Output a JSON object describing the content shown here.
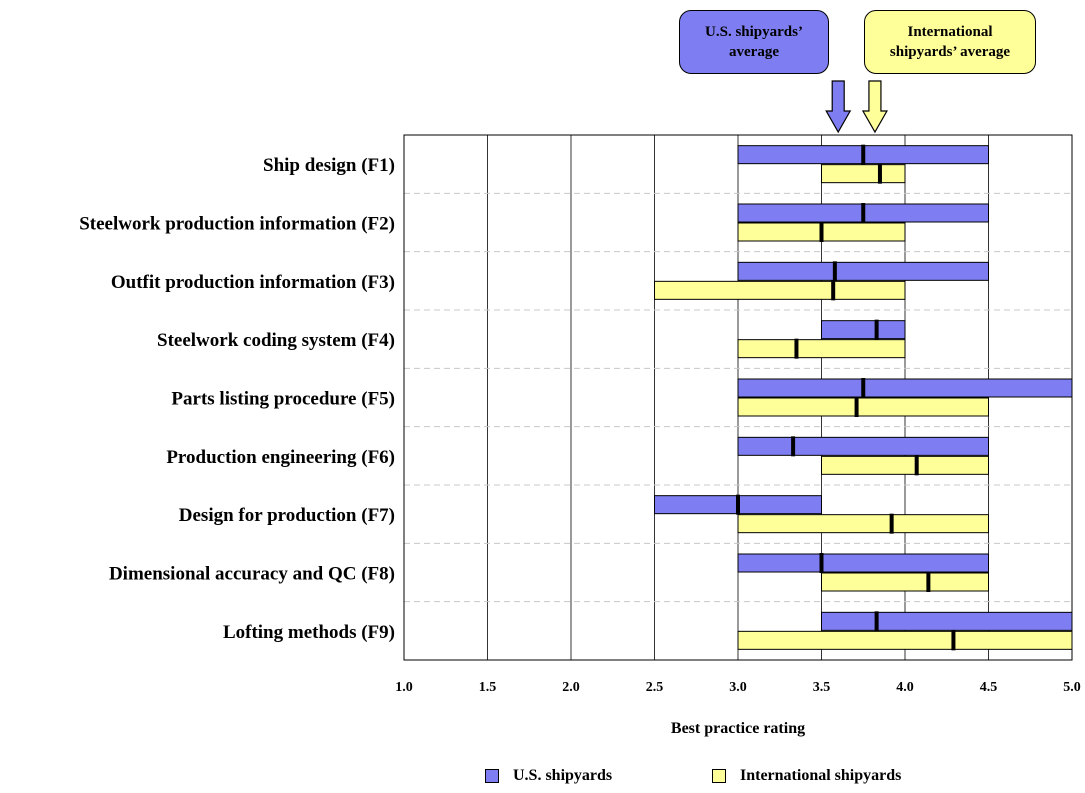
{
  "colors": {
    "us": "#7e7ef2",
    "intl": "#ffff9a",
    "marker": "#000000",
    "grid": "#000000",
    "separator": "#c8c8c8"
  },
  "callouts": {
    "us_line1": "U.S. shipyards’",
    "us_line2": "average",
    "intl_line1": "International",
    "intl_line2": "shipyards’ average",
    "us_arrow_value": 3.6,
    "intl_arrow_value": 3.82
  },
  "legend": {
    "us": "U.S. shipyards",
    "intl": "International shipyards"
  },
  "chart_data": {
    "type": "bar",
    "subtype": "range-with-average",
    "title": "",
    "xlabel": "Best practice rating",
    "ylabel": "",
    "xlim": [
      1.0,
      5.0
    ],
    "xticks": [
      "1.0",
      "1.5",
      "2.0",
      "2.5",
      "3.0",
      "3.5",
      "4.0",
      "4.5",
      "5.0"
    ],
    "grid": "vertical",
    "legend_position": "bottom",
    "categories": [
      "Ship design (F1)",
      "Steelwork production information (F2)",
      "Outfit production information (F3)",
      "Steelwork coding system (F4)",
      "Parts listing procedure (F5)",
      "Production engineering (F6)",
      "Design for production (F7)",
      "Dimensional accuracy and QC (F8)",
      "Lofting methods (F9)"
    ],
    "series": [
      {
        "name": "U.S. shipyards",
        "min": [
          3.0,
          3.0,
          3.0,
          3.5,
          3.0,
          3.0,
          2.5,
          3.0,
          3.5
        ],
        "max": [
          4.5,
          4.5,
          4.5,
          4.0,
          5.0,
          4.5,
          3.5,
          4.5,
          5.0
        ],
        "avg": [
          3.75,
          3.75,
          3.58,
          3.83,
          3.75,
          3.33,
          3.0,
          3.5,
          3.83
        ]
      },
      {
        "name": "International shipyards",
        "min": [
          3.5,
          3.0,
          2.5,
          3.0,
          3.0,
          3.5,
          3.0,
          3.5,
          3.0
        ],
        "max": [
          4.0,
          4.0,
          4.0,
          4.0,
          4.5,
          4.5,
          4.5,
          4.5,
          5.0
        ],
        "avg": [
          3.85,
          3.5,
          3.57,
          3.35,
          3.71,
          4.07,
          3.92,
          4.14,
          4.29
        ]
      }
    ]
  }
}
